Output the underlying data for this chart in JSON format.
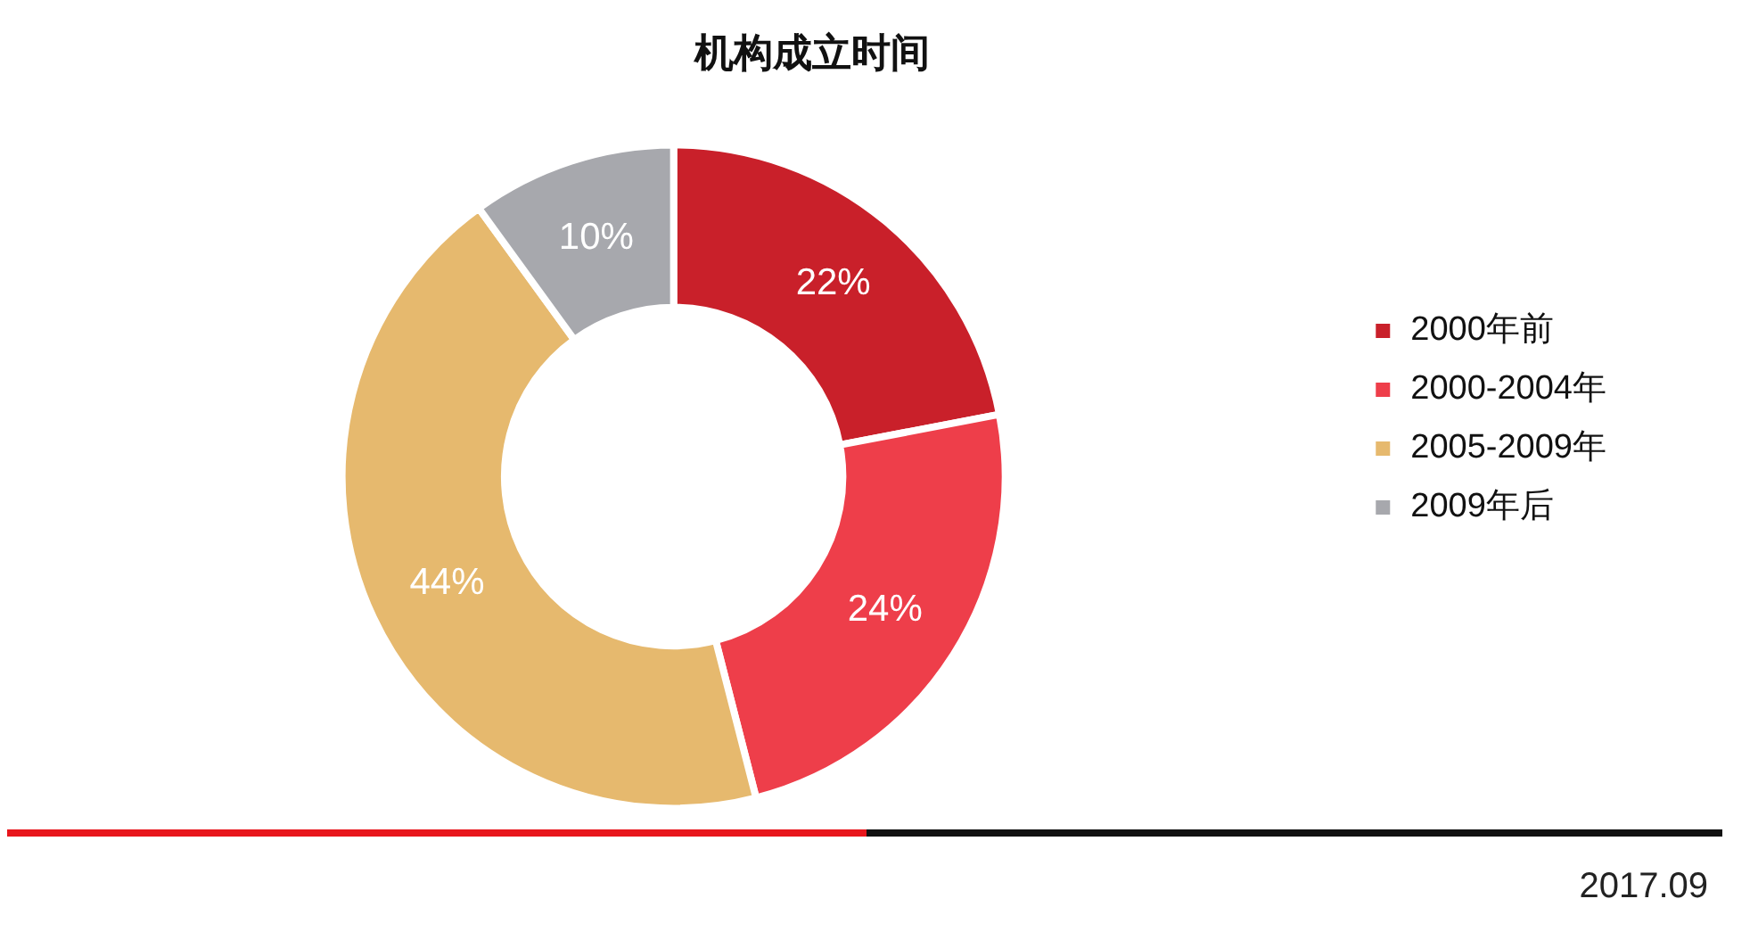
{
  "chart_data": {
    "type": "donut",
    "title": "机构成立时间",
    "categories": [
      "2000年前",
      "2000-2004年",
      "2005-2009年",
      "2009年后"
    ],
    "values": [
      22,
      24,
      44,
      10
    ],
    "colors": [
      "#c9202a",
      "#ee3e4a",
      "#e6b96e",
      "#a7a8ad"
    ],
    "value_labels": [
      "22%",
      "24%",
      "44%",
      "10%"
    ],
    "legend": "right",
    "annotations": [
      "2017.09"
    ]
  }
}
